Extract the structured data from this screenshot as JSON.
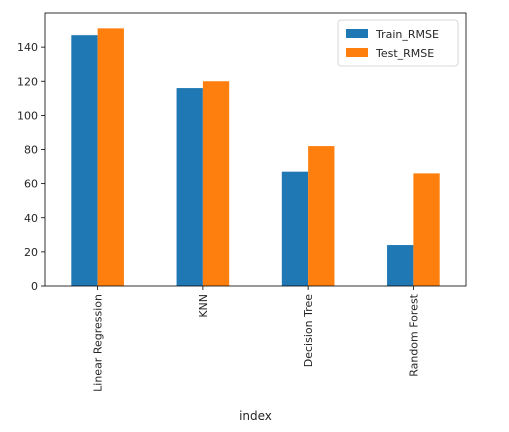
{
  "chart_data": {
    "type": "bar",
    "xlabel": "index",
    "ylabel": "",
    "title": "",
    "categories": [
      "Linear Regression",
      "KNN",
      "Decision Tree",
      "Random Forest"
    ],
    "series": [
      {
        "name": "Train_RMSE",
        "color": "#1f77b4",
        "values": [
          147,
          116,
          67,
          24
        ]
      },
      {
        "name": "Test_RMSE",
        "color": "#ff7f0e",
        "values": [
          151,
          120,
          82,
          66
        ]
      }
    ],
    "ylim": [
      0,
      160
    ],
    "yticks": [
      0,
      20,
      40,
      60,
      80,
      100,
      120,
      140
    ],
    "grid": false,
    "legend_position": "top-right"
  }
}
